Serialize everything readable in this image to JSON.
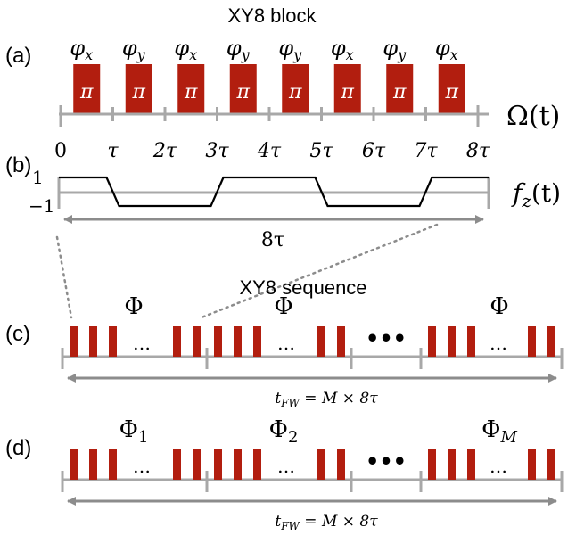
{
  "title": "XY8 block",
  "panel_labels": {
    "a": "(a)",
    "b": "(b)",
    "c": "(c)",
    "d": "(d)"
  },
  "pulses": {
    "phases": [
      "φx",
      "φy",
      "φx",
      "φy",
      "φy",
      "φx",
      "φy",
      "φx"
    ],
    "phase_base": "φ",
    "phase_subs": [
      "x",
      "y",
      "x",
      "y",
      "y",
      "x",
      "y",
      "x"
    ],
    "pulse_label": "π"
  },
  "axis_a": {
    "ticks": [
      "0",
      "τ",
      "2τ",
      "3τ",
      "4τ",
      "5τ",
      "6τ",
      "7τ",
      "8τ"
    ],
    "function_label": "Ω(t)"
  },
  "axis_b": {
    "levels": [
      "1",
      "−1"
    ],
    "function_label_base": "f",
    "function_label_sub": "z",
    "function_label_tail": "(t)",
    "span_label": "8τ"
  },
  "sequence_c": {
    "title": "XY8 sequence",
    "block_labels": [
      "Φ",
      "Φ",
      "Φ"
    ],
    "ellipsis": "…",
    "big_ellipsis": "•••",
    "total_label": "t_FW = M × 8τ"
  },
  "sequence_d": {
    "block_labels": [
      "Φ1",
      "Φ2",
      "ΦM"
    ],
    "ellipsis": "…",
    "big_ellipsis": "•••",
    "total_label": "t_FW = M × 8τ"
  },
  "colors": {
    "pulse": "#b21e0f",
    "axis": "#a8a8a8",
    "arrow": "#8c8c8c",
    "signal": "#000000"
  }
}
